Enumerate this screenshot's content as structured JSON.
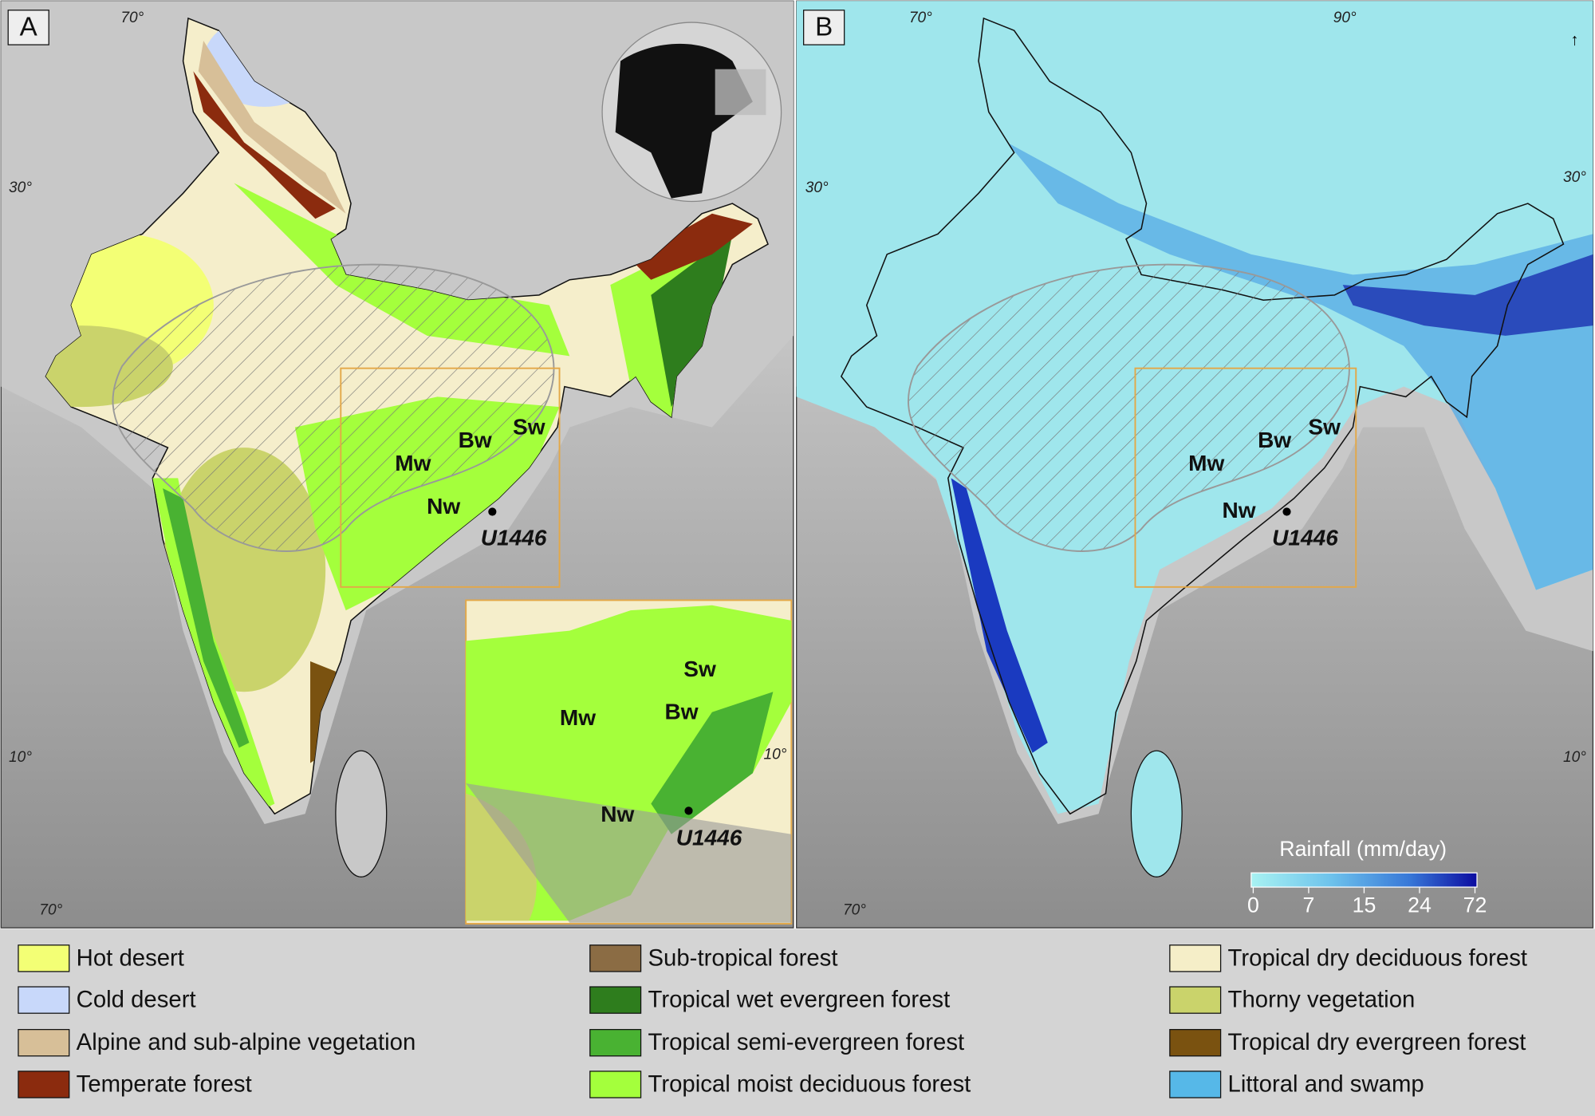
{
  "panel_a": {
    "label": "A",
    "coord_labels": [
      "70°",
      "30°",
      "10°",
      "70°"
    ],
    "basins": [
      "Mw",
      "Bw",
      "Sw",
      "Nw"
    ],
    "site": "U1446",
    "inset": {
      "basins": [
        "Sw",
        "Mw",
        "Bw",
        "Nw"
      ],
      "site": "U1446",
      "coord_label": "10°"
    }
  },
  "panel_b": {
    "label": "B",
    "coord_labels": [
      "70°",
      "90°",
      "30°",
      "30°",
      "10°",
      "70°"
    ],
    "basins": [
      "Mw",
      "Bw",
      "Sw",
      "Nw"
    ],
    "site": "U1446",
    "colorbar": {
      "title": "Rainfall (mm/day)",
      "ticks": [
        0,
        7,
        15,
        24,
        72
      ]
    }
  },
  "legend": [
    {
      "label": "Hot desert",
      "color": "#f3ff75"
    },
    {
      "label": "Cold desert",
      "color": "#c8d8fa"
    },
    {
      "label": "Alpine and sub-alpine vegetation",
      "color": "#d7bf98"
    },
    {
      "label": "Temperate forest",
      "color": "#8b2b0e"
    },
    {
      "label": "Sub-tropical forest",
      "color": "#8b6c44"
    },
    {
      "label": "Tropical wet evergreen forest",
      "color": "#2e7d1d"
    },
    {
      "label": "Tropical semi-evergreen forest",
      "color": "#49b232"
    },
    {
      "label": "Tropical moist deciduous forest",
      "color": "#a4ff3c"
    },
    {
      "label": "Tropical dry deciduous forest",
      "color": "#f5eec8"
    },
    {
      "label": "Thorny vegetation",
      "color": "#cad36b"
    },
    {
      "label": "Tropical dry evergreen forest",
      "color": "#7a5210"
    },
    {
      "label": "Littoral and swamp",
      "color": "#56b8e8"
    }
  ]
}
